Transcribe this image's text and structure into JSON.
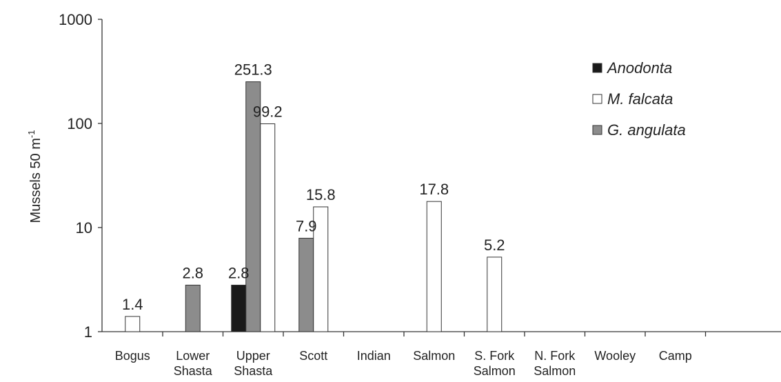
{
  "chart_data": {
    "type": "bar",
    "ylabel": "Mussels 50 m",
    "ylabel_superscript": "-1",
    "yscale": "log",
    "ylim": [
      1,
      1000
    ],
    "yticks": [
      "1",
      "10",
      "100",
      "1000"
    ],
    "grid": false,
    "legend_position": "top-right",
    "categories": [
      [
        "Bogus"
      ],
      [
        "Lower",
        "Shasta"
      ],
      [
        "Upper",
        "Shasta"
      ],
      [
        "Scott"
      ],
      [
        "Indian"
      ],
      [
        "Salmon"
      ],
      [
        "S. Fork",
        "Salmon"
      ],
      [
        "N. Fork",
        "Salmon"
      ],
      [
        "Wooley"
      ],
      [
        "Camp"
      ]
    ],
    "series": [
      {
        "name": "Anodonta",
        "color": "#1a1a1a",
        "values": [
          null,
          null,
          2.8,
          null,
          null,
          null,
          null,
          null,
          null,
          null
        ],
        "labels": [
          null,
          null,
          "2.8",
          null,
          null,
          null,
          null,
          null,
          null,
          null
        ]
      },
      {
        "name": "G. angulata",
        "color": "#8c8c8c",
        "values": [
          null,
          2.8,
          251.3,
          7.9,
          null,
          null,
          null,
          null,
          null,
          null
        ],
        "labels": [
          null,
          "2.8",
          "251.3",
          "7.9",
          null,
          null,
          null,
          null,
          null,
          null
        ]
      },
      {
        "name": "M. falcata",
        "color": "#ffffff",
        "values": [
          1.4,
          null,
          99.2,
          15.8,
          null,
          17.8,
          5.2,
          null,
          null,
          null
        ],
        "labels": [
          "1.4",
          null,
          "99.2",
          "15.8",
          null,
          "17.8",
          "5.2",
          null,
          null,
          null
        ]
      }
    ],
    "legend": [
      {
        "name": "Anodonta",
        "color": "#1a1a1a"
      },
      {
        "name": "M. falcata",
        "color": "#ffffff"
      },
      {
        "name": "G. angulata",
        "color": "#8c8c8c"
      }
    ]
  }
}
